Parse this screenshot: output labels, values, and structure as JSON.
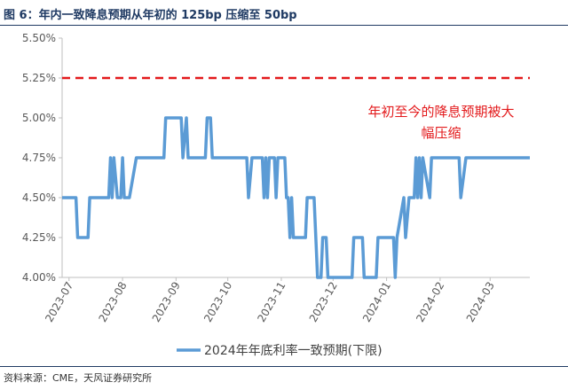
{
  "figure": {
    "title": "图 6：年内一致降息预期从年初的 125bp 压缩至 50bp",
    "source": "资料来源：CME，天风证券研究所"
  },
  "chart_data": {
    "type": "line",
    "title": "",
    "xlabel": "",
    "ylabel": "",
    "ylim": [
      0.04,
      0.055
    ],
    "y_ticks": [
      0.04,
      0.0425,
      0.045,
      0.0475,
      0.05,
      0.0525,
      0.055
    ],
    "y_tick_labels": [
      "4.00%",
      "4.25%",
      "4.50%",
      "4.75%",
      "5.00%",
      "5.25%",
      "5.50%"
    ],
    "x_range": [
      "2023-06-27",
      "2024-03-24"
    ],
    "x_tick_dates": [
      "2023-07-01",
      "2023-08-01",
      "2023-09-01",
      "2023-10-01",
      "2023-11-01",
      "2023-12-01",
      "2024-01-01",
      "2024-02-01",
      "2024-03-01"
    ],
    "x_tick_labels": [
      "2023-07",
      "2023-08",
      "2023-09",
      "2023-10",
      "2023-11",
      "2023-12",
      "2024-01",
      "2024-02",
      "2024-03"
    ],
    "grid": false,
    "legend_position": "bottom",
    "reference_line": {
      "value": 0.0525,
      "style": "dashed",
      "color": "#e31a1c"
    },
    "annotation": {
      "lines": [
        "年初至今的降息预期被大",
        "幅压缩"
      ],
      "color": "#e31a1c"
    },
    "series": [
      {
        "name": "2024年年底利率一致预期(下限)",
        "color": "#5b9bd5",
        "points": [
          [
            "2023-06-27",
            0.045
          ],
          [
            "2023-07-05",
            0.045
          ],
          [
            "2023-07-06",
            0.0425
          ],
          [
            "2023-07-12",
            0.0425
          ],
          [
            "2023-07-13",
            0.045
          ],
          [
            "2023-07-24",
            0.045
          ],
          [
            "2023-07-25",
            0.0475
          ],
          [
            "2023-07-26",
            0.045
          ],
          [
            "2023-07-27",
            0.0475
          ],
          [
            "2023-07-29",
            0.045
          ],
          [
            "2023-07-31",
            0.045
          ],
          [
            "2023-08-01",
            0.0475
          ],
          [
            "2023-08-02",
            0.045
          ],
          [
            "2023-08-05",
            0.045
          ],
          [
            "2023-08-09",
            0.0475
          ],
          [
            "2023-08-25",
            0.0475
          ],
          [
            "2023-08-26",
            0.05
          ],
          [
            "2023-09-04",
            0.05
          ],
          [
            "2023-09-05",
            0.0475
          ],
          [
            "2023-09-07",
            0.05
          ],
          [
            "2023-09-08",
            0.0475
          ],
          [
            "2023-09-18",
            0.0475
          ],
          [
            "2023-09-19",
            0.05
          ],
          [
            "2023-09-21",
            0.05
          ],
          [
            "2023-09-22",
            0.0475
          ],
          [
            "2023-10-12",
            0.0475
          ],
          [
            "2023-10-13",
            0.045
          ],
          [
            "2023-10-15",
            0.0475
          ],
          [
            "2023-10-21",
            0.0475
          ],
          [
            "2023-10-22",
            0.045
          ],
          [
            "2023-10-23",
            0.0475
          ],
          [
            "2023-10-24",
            0.045
          ],
          [
            "2023-10-25",
            0.0475
          ],
          [
            "2023-10-28",
            0.0475
          ],
          [
            "2023-10-29",
            0.045
          ],
          [
            "2023-10-30",
            0.0475
          ],
          [
            "2023-11-03",
            0.0475
          ],
          [
            "2023-11-04",
            0.045
          ],
          [
            "2023-11-05",
            0.045
          ],
          [
            "2023-11-06",
            0.0425
          ],
          [
            "2023-11-07",
            0.045
          ],
          [
            "2023-11-08",
            0.0425
          ],
          [
            "2023-11-15",
            0.0425
          ],
          [
            "2023-11-16",
            0.045
          ],
          [
            "2023-11-20",
            0.045
          ],
          [
            "2023-11-22",
            0.04
          ],
          [
            "2023-11-24",
            0.04
          ],
          [
            "2023-11-25",
            0.0425
          ],
          [
            "2023-11-27",
            0.0425
          ],
          [
            "2023-11-28",
            0.04
          ],
          [
            "2023-12-12",
            0.04
          ],
          [
            "2023-12-13",
            0.0425
          ],
          [
            "2023-12-18",
            0.0425
          ],
          [
            "2023-12-19",
            0.04
          ],
          [
            "2023-12-26",
            0.04
          ],
          [
            "2023-12-27",
            0.0425
          ],
          [
            "2024-01-05",
            0.0425
          ],
          [
            "2024-01-06",
            0.04
          ],
          [
            "2024-01-07",
            0.0425
          ],
          [
            "2024-01-11",
            0.045
          ],
          [
            "2024-01-12",
            0.0425
          ],
          [
            "2024-01-14",
            0.045
          ],
          [
            "2024-01-17",
            0.045
          ],
          [
            "2024-01-18",
            0.0475
          ],
          [
            "2024-01-19",
            0.045
          ],
          [
            "2024-01-20",
            0.0475
          ],
          [
            "2024-01-21",
            0.045
          ],
          [
            "2024-01-22",
            0.0475
          ],
          [
            "2024-01-26",
            0.045
          ],
          [
            "2024-01-27",
            0.0475
          ],
          [
            "2024-02-12",
            0.0475
          ],
          [
            "2024-02-13",
            0.045
          ],
          [
            "2024-02-16",
            0.0475
          ],
          [
            "2024-03-24",
            0.0475
          ]
        ]
      }
    ]
  }
}
